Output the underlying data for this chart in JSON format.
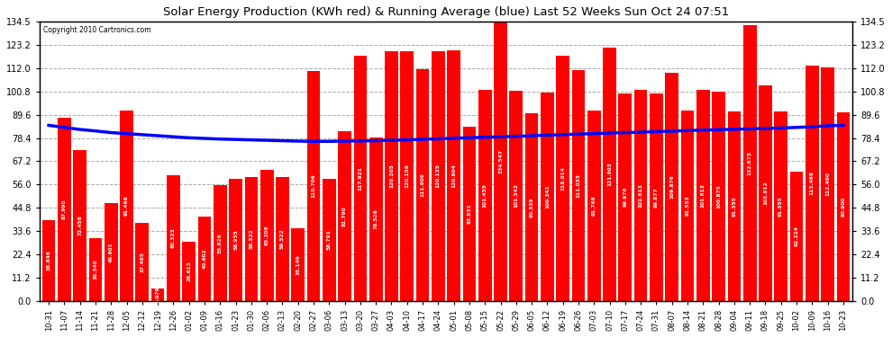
{
  "title": "Solar Energy Production (KWh red) & Running Average (blue) Last 52 Weeks Sun Oct 24 07:51",
  "copyright": "Copyright 2010 Cartronics.com",
  "bar_color": "#FF0000",
  "line_color": "#0000FF",
  "background_color": "#FFFFFF",
  "grid_color": "#AAAAAA",
  "ylim": [
    0.0,
    134.5
  ],
  "yticks": [
    0.0,
    11.2,
    22.4,
    33.6,
    44.8,
    56.0,
    67.2,
    78.4,
    89.6,
    100.8,
    112.0,
    123.2,
    134.5
  ],
  "categories": [
    "10-31",
    "11-07",
    "11-14",
    "11-21",
    "11-28",
    "12-05",
    "12-12",
    "12-19",
    "12-26",
    "01-02",
    "01-09",
    "01-16",
    "01-23",
    "01-30",
    "02-06",
    "02-13",
    "02-20",
    "02-27",
    "03-06",
    "03-13",
    "03-20",
    "03-27",
    "04-03",
    "04-10",
    "04-17",
    "04-24",
    "05-01",
    "05-08",
    "05-15",
    "05-22",
    "05-29",
    "06-05",
    "06-12",
    "06-19",
    "06-26",
    "07-03",
    "07-10",
    "07-17",
    "07-24",
    "07-31",
    "08-07",
    "08-14",
    "08-21",
    "08-28",
    "09-04",
    "09-11",
    "09-18",
    "09-25",
    "10-02",
    "10-09",
    "10-16",
    "10-23"
  ],
  "values": [
    38.846,
    87.99,
    72.458,
    30.34,
    46.901,
    91.466,
    37.465,
    6.079,
    60.323,
    28.613,
    40.602,
    55.926,
    58.955,
    59.522,
    63.208,
    59.522,
    35.149,
    110.706,
    58.791,
    81.79,
    117.921,
    78.526,
    120.205,
    120.156,
    111.606,
    120.135,
    120.604,
    83.931,
    101.455,
    134.547,
    101.342,
    90.339,
    100.341,
    118.014,
    111.035,
    91.768,
    121.903,
    99.976,
    101.613,
    99.877,
    109.876,
    91.553,
    101.613,
    100.875,
    91.355,
    132.675,
    103.912,
    91.355,
    62.224,
    113.468,
    112.46,
    90.9
  ],
  "running_avg": [
    84.5,
    83.5,
    82.5,
    81.8,
    81.0,
    80.5,
    80.0,
    79.5,
    79.0,
    78.5,
    78.2,
    77.9,
    77.7,
    77.5,
    77.3,
    77.1,
    76.9,
    76.8,
    76.8,
    76.9,
    77.0,
    77.1,
    77.3,
    77.5,
    77.8,
    78.0,
    78.3,
    78.5,
    78.8,
    79.0,
    79.2,
    79.5,
    79.8,
    80.0,
    80.3,
    80.5,
    80.8,
    81.0,
    81.2,
    81.5,
    81.7,
    82.0,
    82.2,
    82.4,
    82.6,
    82.8,
    83.0,
    83.2,
    83.5,
    83.8,
    84.3,
    84.5
  ]
}
